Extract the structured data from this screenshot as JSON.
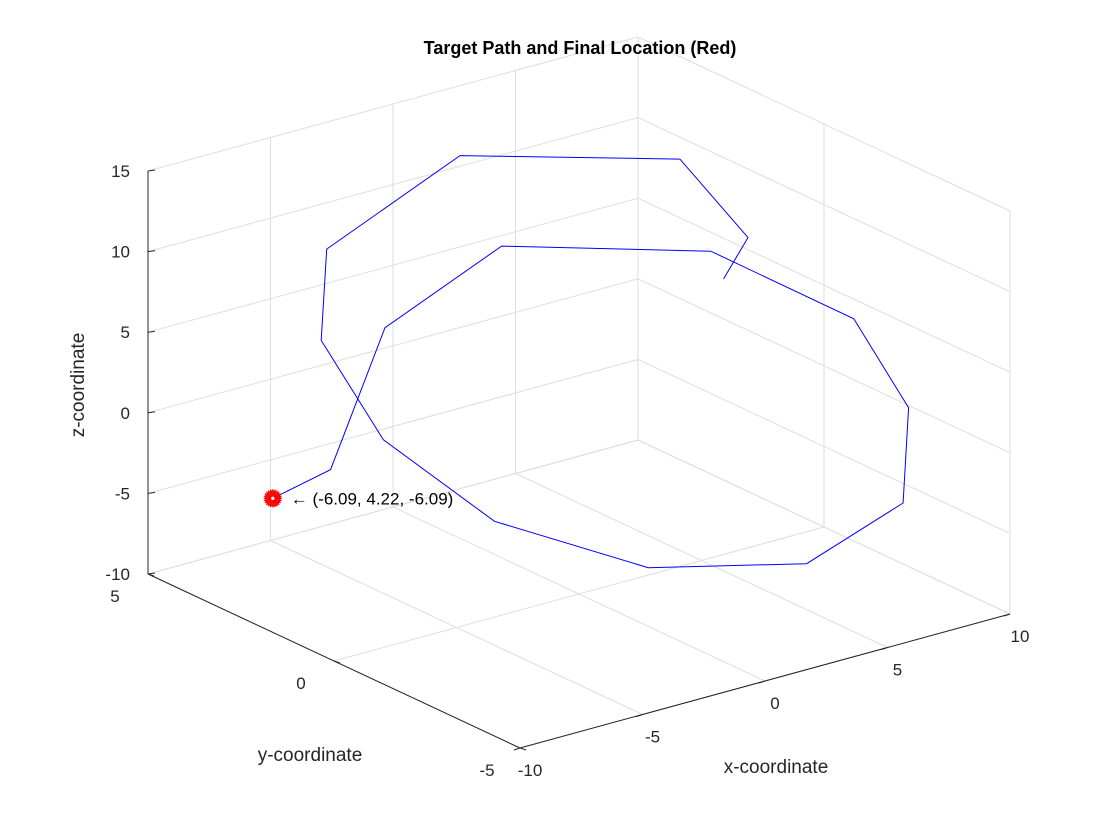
{
  "chart_data": {
    "type": "line3d",
    "title": "Target Path and Final Location (Red)",
    "xlabel": "x-coordinate",
    "ylabel": "y-coordinate",
    "zlabel": "z-coordinate",
    "xlim": [
      -10,
      10
    ],
    "ylim": [
      -5,
      5
    ],
    "zlim": [
      -10,
      15
    ],
    "xticks": [
      -10,
      -5,
      0,
      5,
      10
    ],
    "yticks": [
      -5,
      0,
      5
    ],
    "zticks": [
      -10,
      -5,
      0,
      5,
      10,
      15
    ],
    "grid": true,
    "line_color": "#0000ff",
    "marker_color": "#ff0000",
    "path": [
      {
        "x": 6.2,
        "y": 0.2,
        "z": 6.75
      },
      {
        "x": 7.2,
        "y": 0.2,
        "z": 8.9
      },
      {
        "x": 6.7,
        "y": 1.7,
        "z": 12.36
      },
      {
        "x": 0.0,
        "y": 3.2,
        "z": 13.74
      },
      {
        "x": -6.2,
        "y": 2.7,
        "z": 11.06
      },
      {
        "x": -8.7,
        "y": 1.2,
        "z": 8.05
      },
      {
        "x": -9.2,
        "y": -0.8,
        "z": 4.25
      },
      {
        "x": -7.7,
        "y": -2.8,
        "z": 0.73
      },
      {
        "x": -3.7,
        "y": -4.3,
        "z": -2.19
      },
      {
        "x": 2.0,
        "y": -4.8,
        "z": -3.77
      },
      {
        "x": 6.7,
        "y": -4.3,
        "z": -2.5
      },
      {
        "x": 9.2,
        "y": -2.8,
        "z": 0.75
      },
      {
        "x": 9.7,
        "y": -1.0,
        "z": 4.12
      },
      {
        "x": 7.2,
        "y": 1.2,
        "z": 6.98
      },
      {
        "x": 1.7,
        "y": 3.2,
        "z": 7.42
      },
      {
        "x": -2.3,
        "y": 3.7,
        "z": 3.48
      },
      {
        "x": -6.8,
        "y": 2.2,
        "z": -1.83
      },
      {
        "x": -6.09,
        "y": 4.22,
        "z": -6.09
      }
    ],
    "final_point": {
      "x": -6.09,
      "y": 4.22,
      "z": -6.09
    },
    "annotation": "← (-6.09, 4.22, -6.09)"
  }
}
